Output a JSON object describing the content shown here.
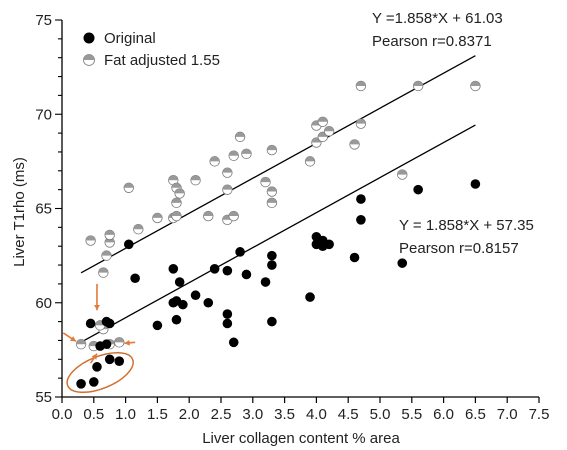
{
  "chart_data": {
    "type": "scatter",
    "xlabel": "Liver collagen content % area",
    "ylabel": "Liver T1rho (ms)",
    "xlim": [
      0,
      7.5
    ],
    "ylim": [
      55,
      75
    ],
    "x_ticks": [
      "0.0",
      "0.5",
      "1.0",
      "1.5",
      "2.0",
      "2.5",
      "3.0",
      "3.5",
      "4.0",
      "4.5",
      "5.0",
      "5.5",
      "6.0",
      "6.5",
      "7.0",
      "7.5"
    ],
    "y_ticks": [
      "55",
      "60",
      "65",
      "70",
      "75"
    ],
    "legend_position": "top-left",
    "series": [
      {
        "name": "Original",
        "marker": "filled-circle",
        "color": "#000000",
        "points": [
          [
            0.3,
            55.7
          ],
          [
            0.5,
            55.8
          ],
          [
            0.55,
            56.6
          ],
          [
            0.75,
            57.0
          ],
          [
            0.9,
            56.9
          ],
          [
            0.45,
            58.9
          ],
          [
            0.6,
            57.7
          ],
          [
            0.7,
            57.8
          ],
          [
            0.7,
            59.0
          ],
          [
            0.75,
            58.9
          ],
          [
            1.05,
            63.1
          ],
          [
            1.15,
            61.3
          ],
          [
            1.5,
            58.8
          ],
          [
            1.75,
            60.0
          ],
          [
            1.75,
            61.8
          ],
          [
            1.8,
            60.1
          ],
          [
            1.8,
            59.1
          ],
          [
            1.85,
            61.1
          ],
          [
            1.9,
            59.9
          ],
          [
            2.1,
            60.4
          ],
          [
            2.3,
            60.0
          ],
          [
            2.4,
            61.8
          ],
          [
            2.6,
            61.7
          ],
          [
            2.6,
            59.4
          ],
          [
            2.6,
            58.9
          ],
          [
            2.7,
            57.9
          ],
          [
            2.8,
            62.7
          ],
          [
            2.9,
            61.5
          ],
          [
            3.2,
            61.1
          ],
          [
            3.3,
            62.0
          ],
          [
            3.3,
            59.0
          ],
          [
            3.3,
            62.5
          ],
          [
            3.9,
            60.3
          ],
          [
            4.0,
            63.1
          ],
          [
            4.0,
            63.5
          ],
          [
            4.1,
            63.3
          ],
          [
            4.1,
            63.0
          ],
          [
            4.2,
            63.1
          ],
          [
            4.6,
            62.4
          ],
          [
            4.7,
            64.4
          ],
          [
            4.7,
            65.5
          ],
          [
            5.35,
            62.1
          ],
          [
            5.6,
            66.0
          ],
          [
            6.5,
            66.3
          ]
        ],
        "fit": {
          "label": "Y = 1.858*X + 57.35",
          "r_label": "Pearson r=0.8157",
          "slope": 1.858,
          "intercept": 57.35,
          "x_range": [
            0.35,
            6.5
          ]
        }
      },
      {
        "name": "Fat adjusted 1.55",
        "marker": "half-filled-circle",
        "color": "#999999",
        "points": [
          [
            0.3,
            57.8
          ],
          [
            0.5,
            57.7
          ],
          [
            0.65,
            58.6
          ],
          [
            0.75,
            57.8
          ],
          [
            0.9,
            57.9
          ],
          [
            0.45,
            63.3
          ],
          [
            0.65,
            61.6
          ],
          [
            0.7,
            62.5
          ],
          [
            0.75,
            63.2
          ],
          [
            0.75,
            63.6
          ],
          [
            0.6,
            58.8
          ],
          [
            1.05,
            66.1
          ],
          [
            1.2,
            63.9
          ],
          [
            1.5,
            64.5
          ],
          [
            1.75,
            66.5
          ],
          [
            1.75,
            64.5
          ],
          [
            1.8,
            66.1
          ],
          [
            1.8,
            65.3
          ],
          [
            1.85,
            65.8
          ],
          [
            1.8,
            64.6
          ],
          [
            2.1,
            66.5
          ],
          [
            2.3,
            64.6
          ],
          [
            2.4,
            67.5
          ],
          [
            2.6,
            66.9
          ],
          [
            2.6,
            64.4
          ],
          [
            2.6,
            66.0
          ],
          [
            2.7,
            64.6
          ],
          [
            2.7,
            67.8
          ],
          [
            2.8,
            68.8
          ],
          [
            2.9,
            67.9
          ],
          [
            3.2,
            66.4
          ],
          [
            3.3,
            65.9
          ],
          [
            3.3,
            65.3
          ],
          [
            3.3,
            68.1
          ],
          [
            3.9,
            67.5
          ],
          [
            4.0,
            68.5
          ],
          [
            4.0,
            69.4
          ],
          [
            4.1,
            69.6
          ],
          [
            4.1,
            68.8
          ],
          [
            4.2,
            69.1
          ],
          [
            4.6,
            68.4
          ],
          [
            4.7,
            69.5
          ],
          [
            4.7,
            71.5
          ],
          [
            5.35,
            66.8
          ],
          [
            5.6,
            71.5
          ],
          [
            6.5,
            71.5
          ]
        ],
        "fit": {
          "label": "Y =1.858*X + 61.03",
          "r_label": "Pearson r=0.8371",
          "slope": 1.858,
          "intercept": 61.03,
          "x_range": [
            0.3,
            6.5
          ]
        }
      }
    ],
    "annotations": {
      "arrow_color": "#e07b39",
      "ellipse_color": "#d0702e"
    }
  }
}
